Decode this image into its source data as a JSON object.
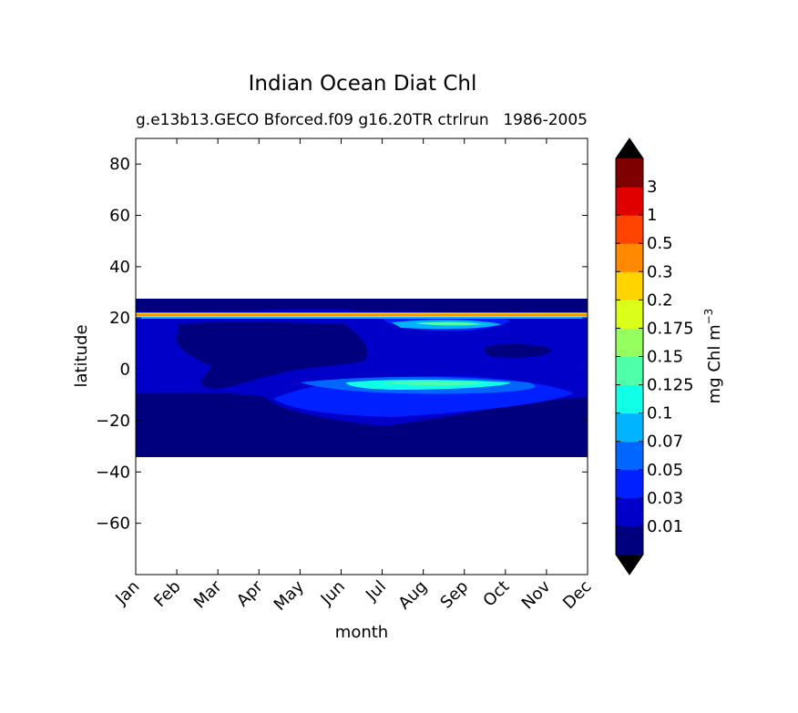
{
  "chart_data": {
    "type": "heatmap",
    "title": "Indian Ocean Diat Chl",
    "subtitle_left": "g.e13b13.GECO Bforced.f09 g16.20TR ctrlrun",
    "subtitle_right": "1986-2005",
    "xlabel": "month",
    "ylabel": "latitude",
    "x_categories": [
      "Jan",
      "Feb",
      "Mar",
      "Apr",
      "May",
      "Jun",
      "Jul",
      "Aug",
      "Sep",
      "Oct",
      "Nov",
      "Dec"
    ],
    "xlim": [
      0,
      11
    ],
    "ylim": [
      -80,
      90
    ],
    "y_ticks": [
      80,
      60,
      40,
      20,
      0,
      -20,
      -40,
      -60
    ],
    "y_tick_labels": [
      "80",
      "60",
      "40",
      "20",
      "0",
      "−20",
      "−40",
      "−60"
    ],
    "data_lat_range": [
      -34,
      27
    ],
    "colorbar": {
      "label": "mg Chl m",
      "label_exponent": "−3",
      "levels": [
        "0.01",
        "0.03",
        "0.05",
        "0.07",
        "0.1",
        "0.125",
        "0.15",
        "0.175",
        "0.2",
        "0.3",
        "0.5",
        "1",
        "3"
      ],
      "colors": [
        "#00007f",
        "#0000c8",
        "#0020ff",
        "#0066ff",
        "#00b4ff",
        "#10ffe6",
        "#50ffaa",
        "#96ff60",
        "#dcff1a",
        "#ffd400",
        "#ff8900",
        "#ff4300",
        "#e00000",
        "#7f0000"
      ],
      "extend": "both"
    }
  }
}
